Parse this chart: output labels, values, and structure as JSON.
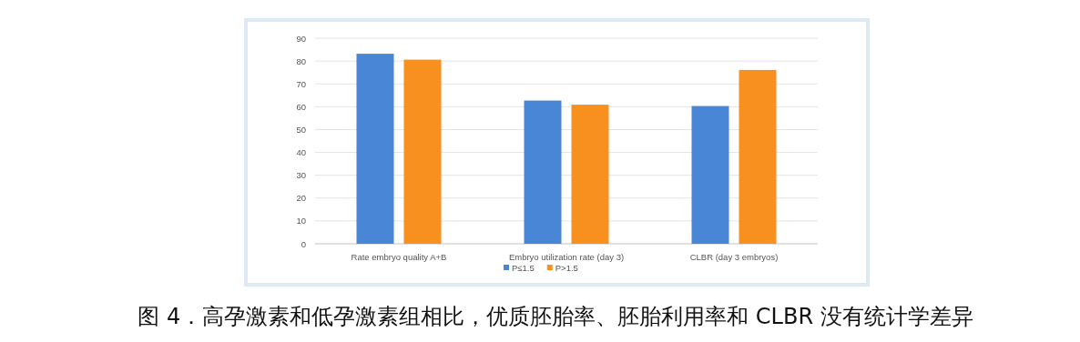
{
  "chart_data": {
    "type": "bar",
    "categories": [
      "Rate embryo quality A+B",
      "Embryo utilization rate (day 3)",
      "CLBR (day 3 embryos)"
    ],
    "series": [
      {
        "name": "P≤1.5",
        "color": "#4a86d6",
        "values": [
          83.2,
          62.7,
          60.3
        ]
      },
      {
        "name": "P>1.5",
        "color": "#f7901e",
        "values": [
          80.6,
          60.9,
          76.1
        ]
      }
    ],
    "ylim": [
      0,
      90
    ],
    "yticks": [
      0,
      10,
      20,
      30,
      40,
      50,
      60,
      70,
      80,
      90
    ],
    "grid": "y",
    "legend": "bottom",
    "annotations": [
      "图 4．高孕激素和低孕激素组相比，优质胚胎率、胚胎利用率和 CLBR 没有统计学差异"
    ]
  }
}
